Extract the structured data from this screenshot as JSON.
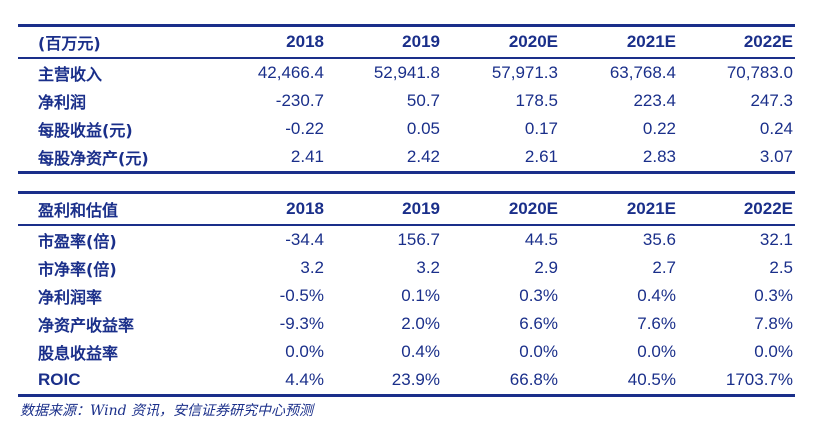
{
  "table1": {
    "header": [
      "(百万元)",
      "2018",
      "2019",
      "2020E",
      "2021E",
      "2022E"
    ],
    "rows": [
      [
        "主营收入",
        "42,466.4",
        "52,941.8",
        "57,971.3",
        "63,768.4",
        "70,783.0"
      ],
      [
        "净利润",
        "-230.7",
        "50.7",
        "178.5",
        "223.4",
        "247.3"
      ],
      [
        "每股收益(元)",
        "-0.22",
        "0.05",
        "0.17",
        "0.22",
        "0.24"
      ],
      [
        "每股净资产(元)",
        "2.41",
        "2.42",
        "2.61",
        "2.83",
        "3.07"
      ]
    ]
  },
  "table2": {
    "header": [
      "盈利和估值",
      "2018",
      "2019",
      "2020E",
      "2021E",
      "2022E"
    ],
    "rows": [
      [
        "市盈率(倍)",
        "-34.4",
        "156.7",
        "44.5",
        "35.6",
        "32.1"
      ],
      [
        "市净率(倍)",
        "3.2",
        "3.2",
        "2.9",
        "2.7",
        "2.5"
      ],
      [
        "净利润率",
        "-0.5%",
        "0.1%",
        "0.3%",
        "0.4%",
        "0.3%"
      ],
      [
        "净资产收益率",
        "-9.3%",
        "2.0%",
        "6.6%",
        "7.6%",
        "7.8%"
      ],
      [
        "股息收益率",
        "0.0%",
        "0.4%",
        "0.0%",
        "0.0%",
        "0.0%"
      ],
      [
        "ROIC",
        "4.4%",
        "23.9%",
        "66.8%",
        "40.5%",
        "1703.7%"
      ]
    ]
  },
  "source": "数据来源：Wind 资讯，安信证券研究中心预测",
  "colors": {
    "text": "#1a2f8a",
    "rules": "#1a2f8a"
  }
}
